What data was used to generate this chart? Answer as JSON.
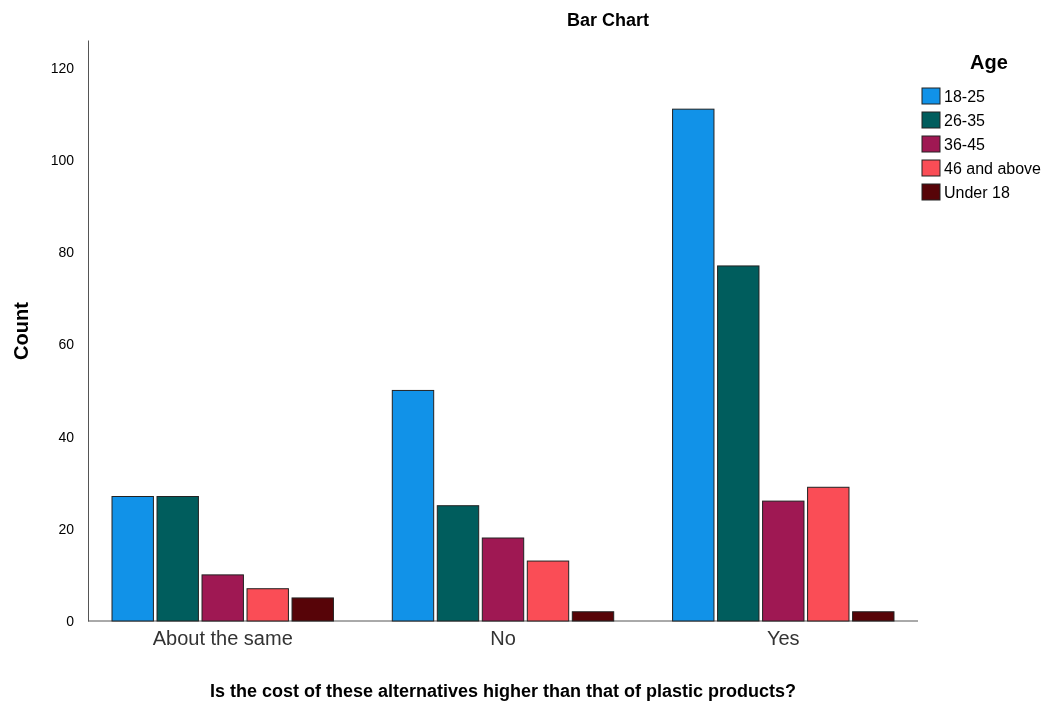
{
  "chart_data": {
    "type": "bar",
    "title": "Bar Chart",
    "xlabel": "Is the cost of these alternatives higher than that of plastic products?",
    "ylabel": "Count",
    "legend_title": "Age",
    "legend": "right",
    "categories": [
      "About the same",
      "No",
      "Yes"
    ],
    "series": [
      {
        "name": "18-25",
        "color": "#1192e8",
        "values": [
          27,
          50,
          111
        ]
      },
      {
        "name": "26-35",
        "color": "#005d5d",
        "values": [
          27,
          25,
          77
        ]
      },
      {
        "name": "36-45",
        "color": "#9f1853",
        "values": [
          10,
          18,
          26
        ]
      },
      {
        "name": "46 and above",
        "color": "#fa4d56",
        "values": [
          7,
          13,
          29
        ]
      },
      {
        "name": "Under 18",
        "color": "#570408",
        "values": [
          5,
          2,
          2
        ]
      }
    ],
    "ylim": [
      0,
      126
    ],
    "yticks": [
      0,
      20,
      40,
      60,
      80,
      100,
      120
    ],
    "grid": false
  }
}
